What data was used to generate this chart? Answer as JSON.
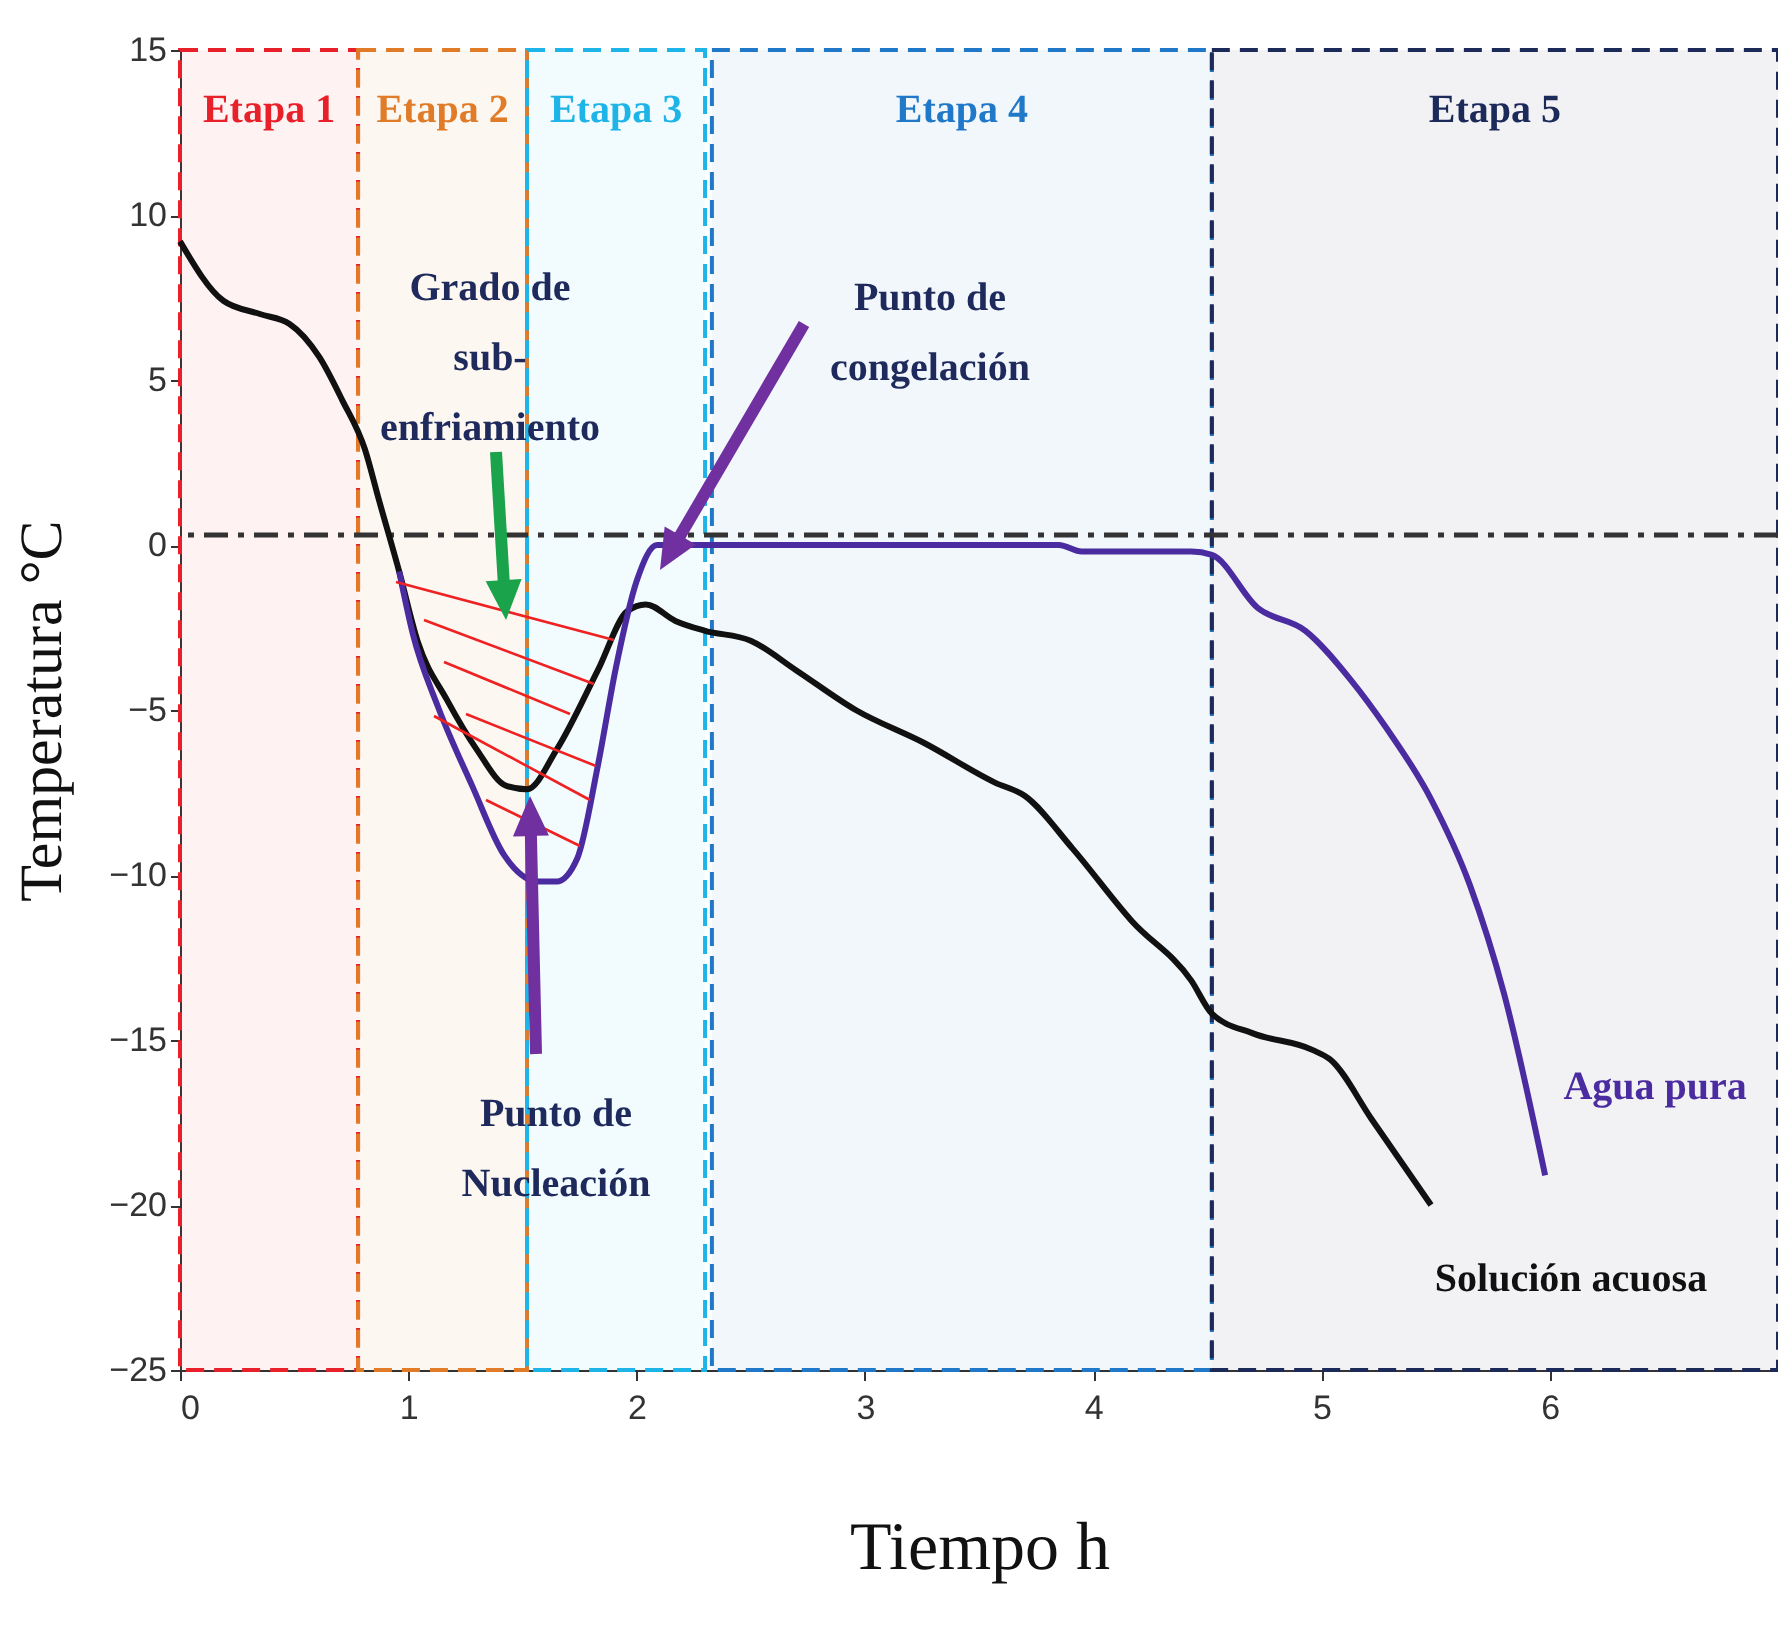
{
  "chart_data": {
    "type": "line",
    "xlabel": "Tiempo h",
    "ylabel": "Temperatura °C",
    "xlim": [
      0,
      7
    ],
    "xticks": [
      0,
      1,
      2,
      3,
      4,
      5,
      6
    ],
    "ylim": [
      -25,
      15
    ],
    "yticks": [
      -25,
      -20,
      -15,
      -10,
      -5,
      0,
      5,
      10,
      15
    ],
    "series": [
      {
        "name": "Solución acuosa",
        "color": "#111111",
        "x": [
          0,
          0.19,
          0.35,
          0.48,
          0.61,
          0.71,
          0.81,
          0.87,
          0.96,
          1.04,
          1.17,
          1.3,
          1.43,
          1.52,
          1.65,
          1.83,
          1.96,
          2.04,
          2.17,
          2.3,
          2.5,
          2.7,
          2.96,
          3.26,
          3.57,
          3.7,
          3.91,
          4.17,
          4.43,
          4.52,
          4.7,
          4.96,
          5.04,
          5.22,
          5.48
        ],
        "values": [
          9.2,
          7.4,
          7.0,
          6.7,
          5.7,
          4.4,
          2.9,
          1.4,
          -0.8,
          -2.9,
          -4.7,
          -6.2,
          -7.3,
          -7.4,
          -6.2,
          -3.8,
          -2.0,
          -1.8,
          -2.3,
          -2.6,
          -2.9,
          -3.8,
          -5.0,
          -6.0,
          -7.2,
          -7.6,
          -9.2,
          -11.4,
          -13.2,
          -14.2,
          -14.8,
          -15.3,
          -15.6,
          -17.4,
          -20.0
        ]
      },
      {
        "name": "Agua pura",
        "color": "#4b2ca0",
        "x": [
          0.96,
          1.02,
          1.13,
          1.28,
          1.42,
          1.57,
          1.65,
          1.74,
          1.83,
          1.91,
          2.0,
          2.09,
          3.85,
          3.95,
          4.43,
          4.52,
          4.72,
          4.93,
          5.13,
          5.28,
          5.48,
          5.65,
          5.8,
          5.98
        ],
        "values": [
          -0.8,
          -2.7,
          -4.9,
          -7.3,
          -9.4,
          -10.2,
          -10.2,
          -9.5,
          -6.7,
          -3.7,
          -1.1,
          0,
          0,
          -0.2,
          -0.2,
          -0.3,
          -1.9,
          -2.6,
          -4.1,
          -5.5,
          -7.7,
          -10.3,
          -13.6,
          -19.1
        ]
      }
    ],
    "ref_lines": [
      {
        "axis": "y",
        "value": 0.3,
        "color": "#333333",
        "line_style": "dashed"
      }
    ],
    "bands": [
      {
        "axis": "x",
        "from": 0,
        "to": 0.78,
        "label": "Etapa 1",
        "color": "#e8202a"
      },
      {
        "axis": "x",
        "from": 0.78,
        "to": 1.52,
        "label": "Etapa 2",
        "color": "#e07b28"
      },
      {
        "axis": "x",
        "from": 1.52,
        "to": 2.3,
        "label": "Etapa 3",
        "color": "#1eb4e8"
      },
      {
        "axis": "x",
        "from": 2.33,
        "to": 4.52,
        "label": "Etapa 4",
        "color": "#1f78c8"
      },
      {
        "axis": "x",
        "from": 4.52,
        "to": 7,
        "label": "Etapa 5",
        "color": "#1c2a5a"
      }
    ],
    "annotations": [
      "Grado de sub-enfriamiento",
      "Punto de Nucleación",
      "Punto de congelación"
    ]
  }
}
